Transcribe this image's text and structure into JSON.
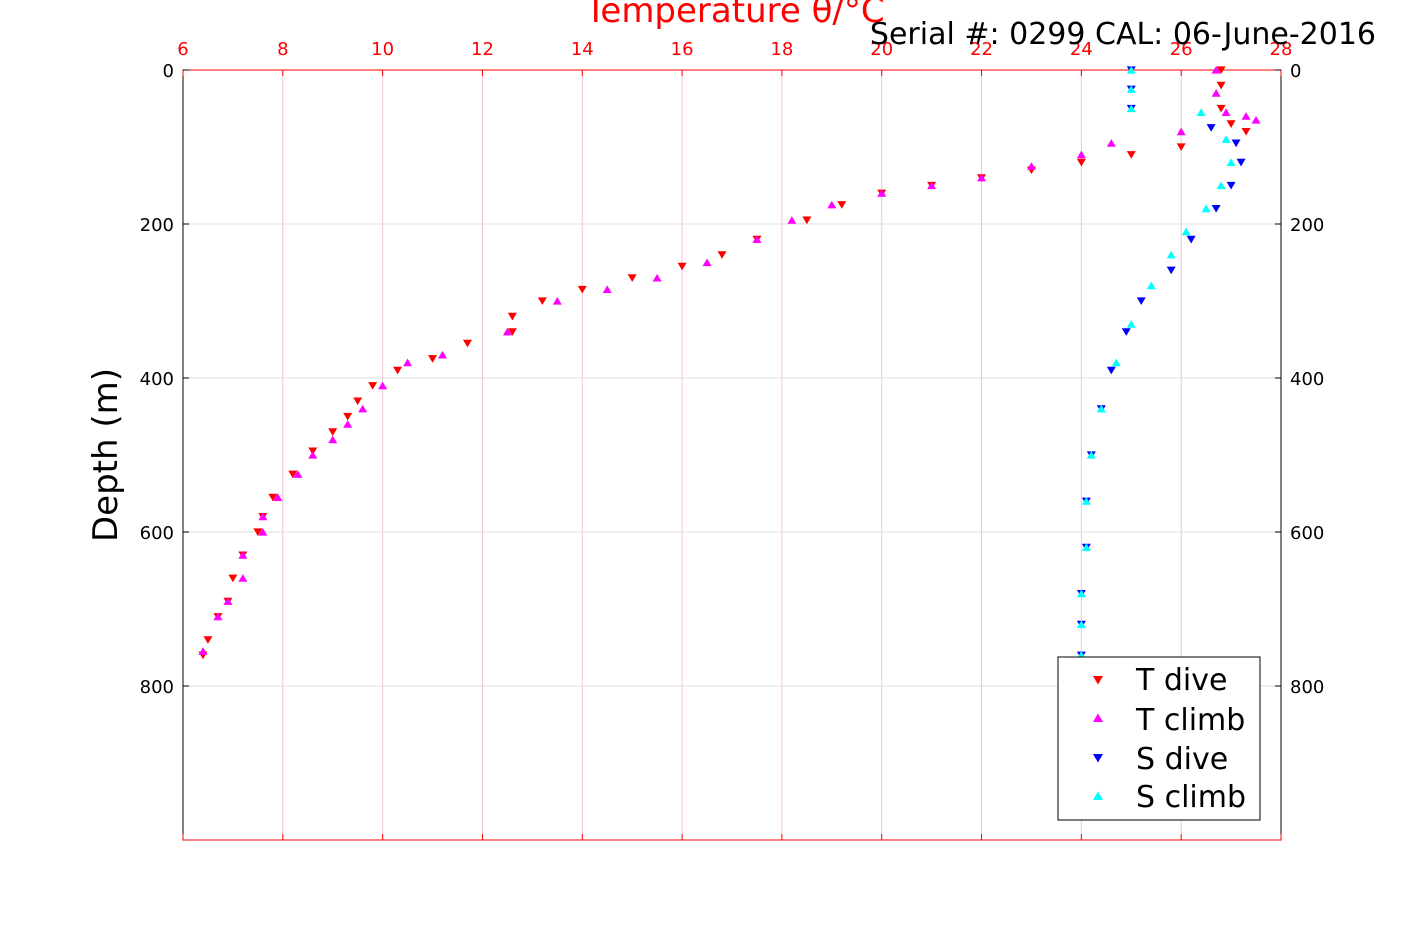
{
  "chart_data": {
    "type": "scatter",
    "subtitle": "Serial #: 0299 CAL: 06-June-2016",
    "xlabel": "Temperature θ/°C",
    "ylabel": "Depth (m)",
    "xlim": [
      6,
      28
    ],
    "ylim": [
      0,
      1000
    ],
    "y_reversed": true,
    "x_axis_position": "top",
    "grid": true,
    "legend_position": "bottom-right",
    "xticks": [
      "6",
      "8",
      "10",
      "12",
      "14",
      "16",
      "18",
      "20",
      "22",
      "24",
      "26",
      "28"
    ],
    "yticks": [
      "0",
      "200",
      "400",
      "600",
      "800"
    ],
    "colors": {
      "axis_red": "#ff0000",
      "t_dive": "#ff0000",
      "t_climb": "#ff00ff",
      "s_dive": "#0000ff",
      "s_climb": "#00ffff"
    },
    "legend": [
      "T dive",
      "T climb",
      "S dive",
      "S climb"
    ],
    "series": [
      {
        "name": "T dive",
        "marker": "triangle-down",
        "color": "#ff0000",
        "x": [
          26.8,
          26.8,
          26.8,
          27.0,
          27.3,
          26.0,
          25.0,
          24.0,
          23.0,
          22.0,
          21.0,
          20.0,
          19.2,
          18.5,
          17.5,
          16.8,
          16.0,
          15.0,
          14.0,
          13.2,
          12.6,
          12.6,
          11.7,
          11.0,
          10.3,
          9.8,
          9.5,
          9.3,
          9.0,
          8.6,
          8.2,
          7.8,
          7.6,
          7.5,
          7.2,
          7.0,
          6.9,
          6.7,
          6.5,
          6.4
        ],
        "y": [
          0,
          20,
          50,
          70,
          80,
          100,
          110,
          120,
          130,
          140,
          150,
          160,
          175,
          195,
          220,
          240,
          255,
          270,
          285,
          300,
          320,
          340,
          355,
          375,
          390,
          410,
          430,
          450,
          470,
          495,
          525,
          555,
          580,
          600,
          630,
          660,
          690,
          710,
          740,
          760
        ]
      },
      {
        "name": "T climb",
        "marker": "triangle-up",
        "color": "#ff00ff",
        "x": [
          26.7,
          26.7,
          26.9,
          27.3,
          27.5,
          26.0,
          24.6,
          24.0,
          23.0,
          22.0,
          21.0,
          20.0,
          19.0,
          18.2,
          17.5,
          16.5,
          15.5,
          14.5,
          13.5,
          12.5,
          11.2,
          10.5,
          10.0,
          9.6,
          9.3,
          9.0,
          8.6,
          8.3,
          7.9,
          7.6,
          7.6,
          7.2,
          7.2,
          6.9,
          6.7,
          6.4
        ],
        "y": [
          0,
          30,
          55,
          60,
          65,
          80,
          95,
          110,
          125,
          140,
          150,
          160,
          175,
          195,
          220,
          250,
          270,
          285,
          300,
          340,
          370,
          380,
          410,
          440,
          460,
          480,
          500,
          525,
          555,
          580,
          600,
          630,
          660,
          690,
          710,
          755
        ]
      },
      {
        "name": "S dive",
        "marker": "triangle-down",
        "color": "#0000ff",
        "x": [
          25.0,
          25.0,
          25.0,
          26.6,
          27.1,
          27.2,
          27.0,
          26.7,
          26.2,
          25.8,
          25.2,
          24.9,
          24.6,
          24.4,
          24.2,
          24.1,
          24.1,
          24.0,
          24.0,
          24.0
        ],
        "y": [
          0,
          25,
          50,
          75,
          95,
          120,
          150,
          180,
          220,
          260,
          300,
          340,
          390,
          440,
          500,
          560,
          620,
          680,
          720,
          760
        ]
      },
      {
        "name": "S climb",
        "marker": "triangle-up",
        "color": "#00ffff",
        "x": [
          25.0,
          25.0,
          25.0,
          26.4,
          26.9,
          27.0,
          26.8,
          26.5,
          26.1,
          25.8,
          25.4,
          25.0,
          24.7,
          24.4,
          24.2,
          24.1,
          24.1,
          24.0,
          24.0,
          24.0
        ],
        "y": [
          0,
          25,
          50,
          55,
          90,
          120,
          150,
          180,
          210,
          240,
          280,
          330,
          380,
          440,
          500,
          560,
          620,
          680,
          720,
          760
        ]
      }
    ]
  }
}
